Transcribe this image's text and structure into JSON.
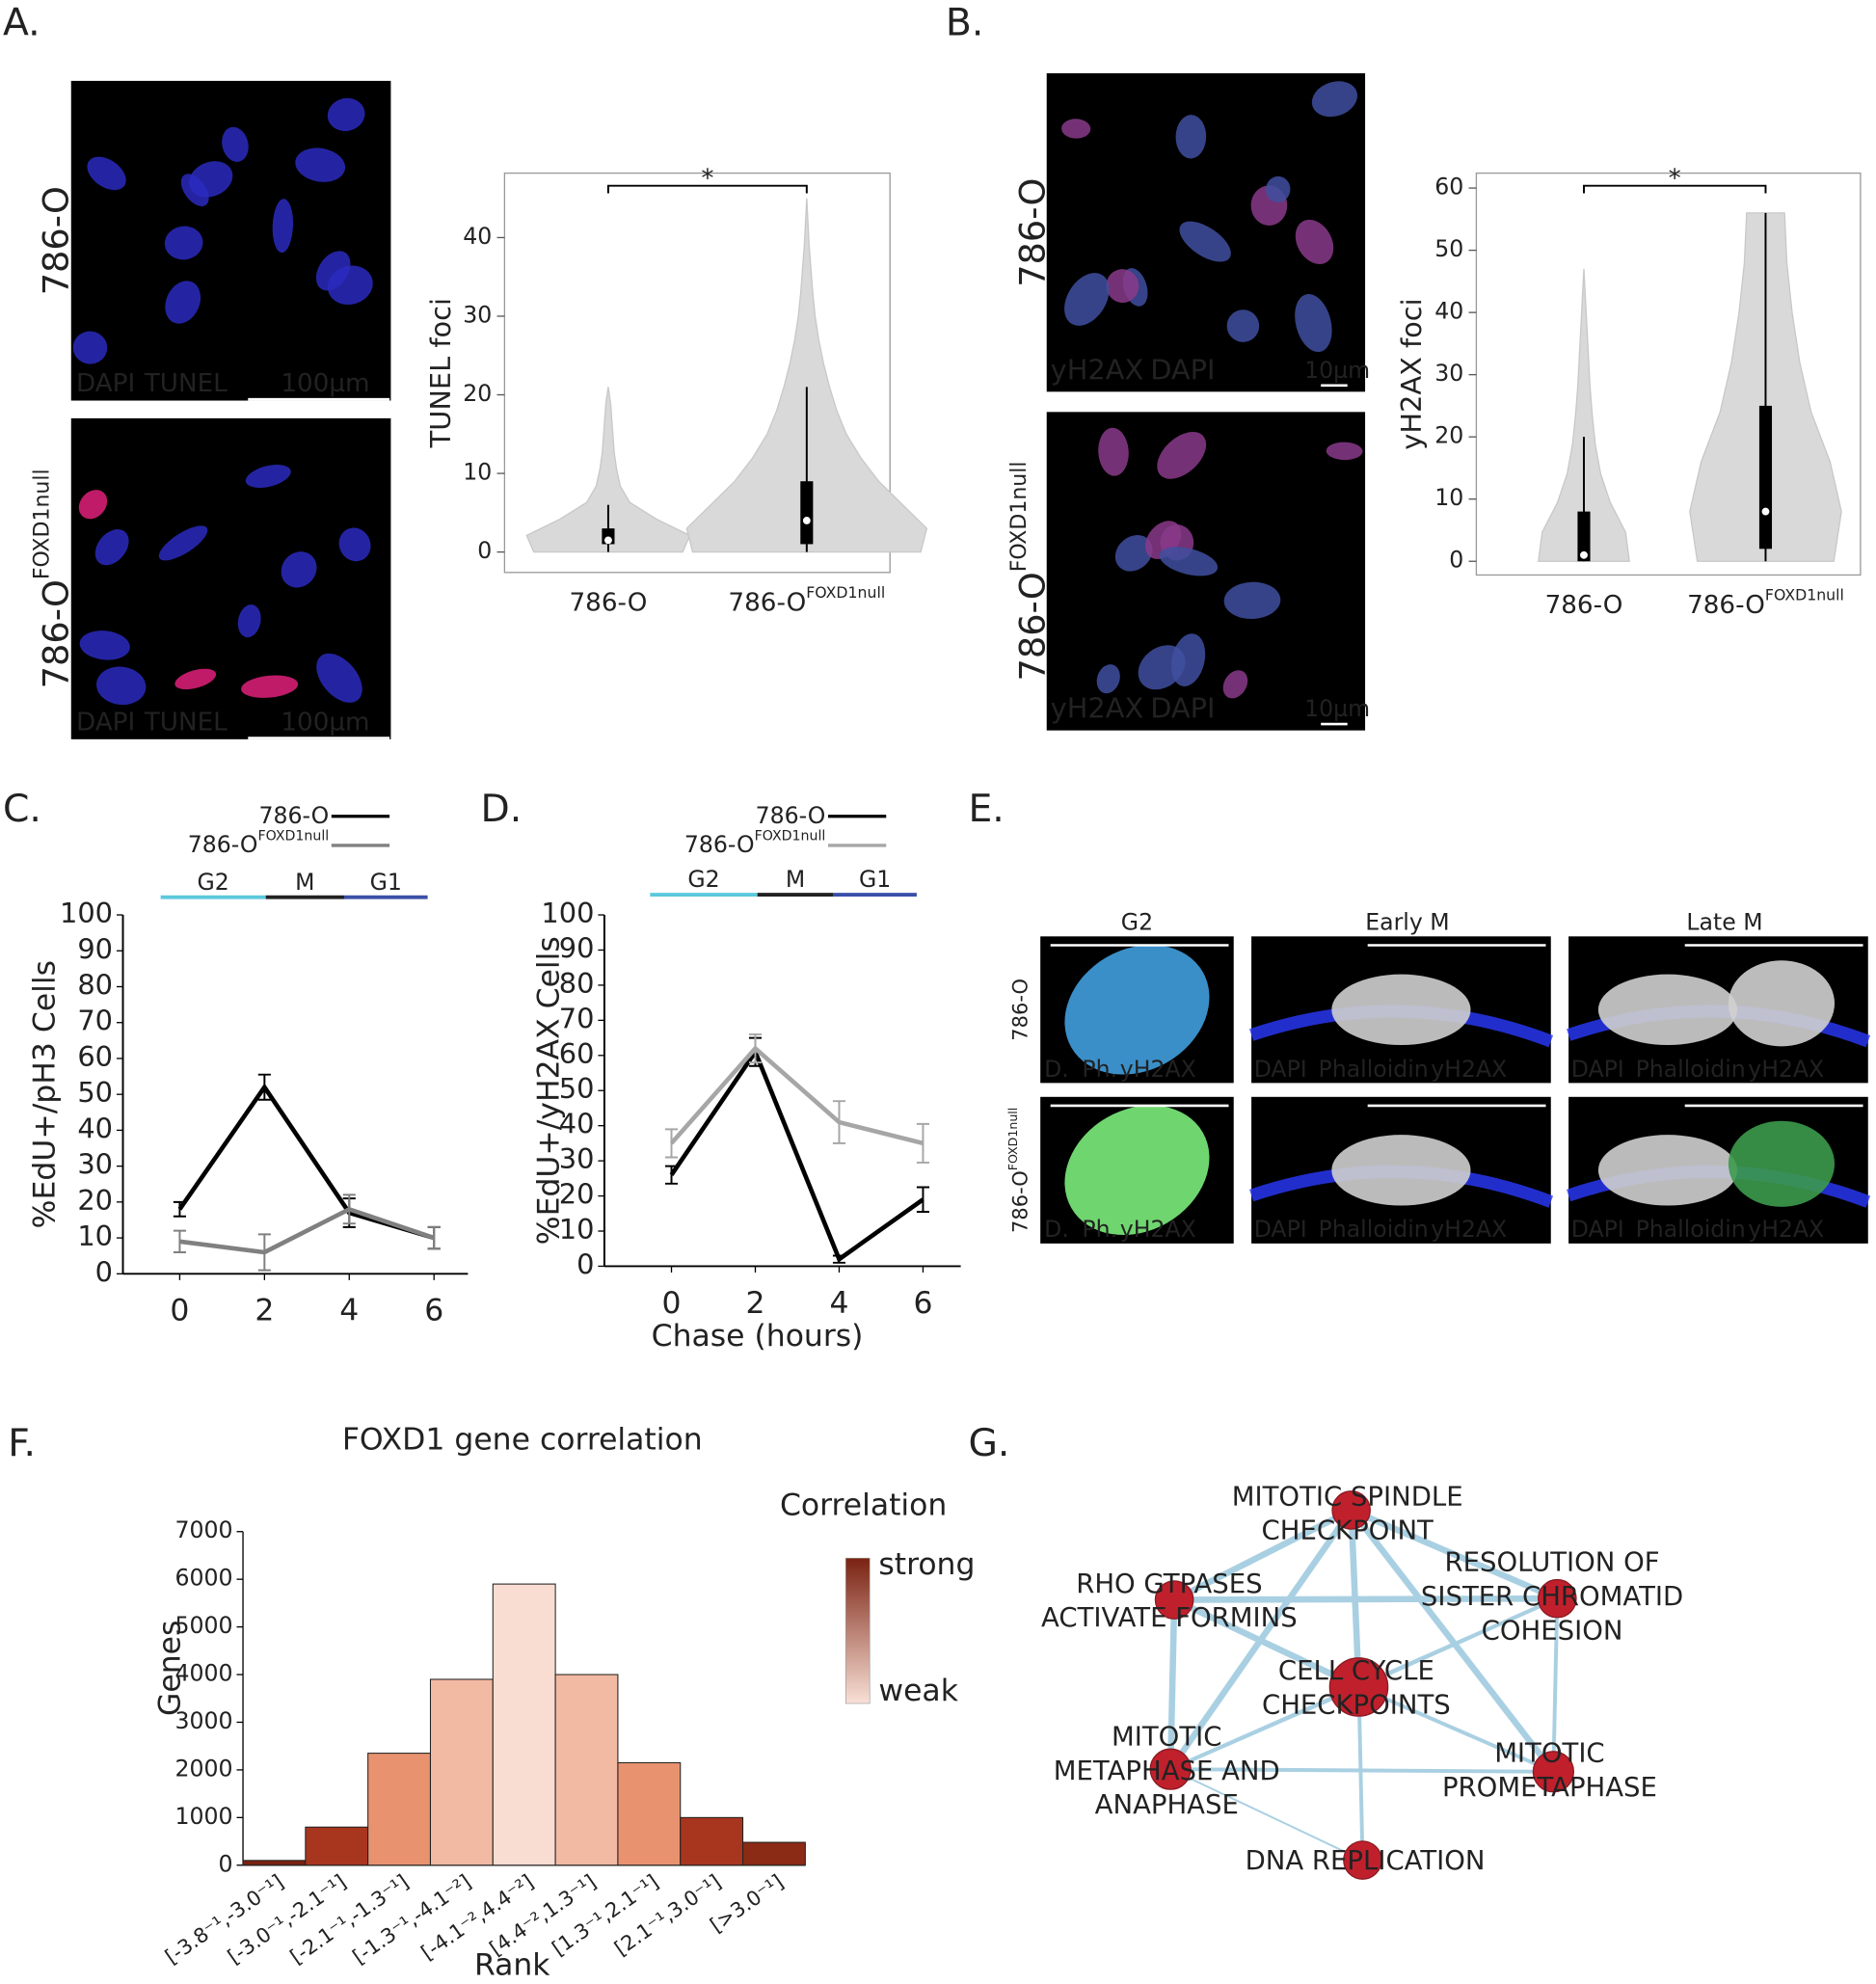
{
  "panel_labels": [
    "A.",
    "B.",
    "C.",
    "D.",
    "E.",
    "F.",
    "G."
  ],
  "microscopy": {
    "cell_line": "786-O",
    "knockout": "FOXD1null",
    "a_stains": [
      "DAPI",
      "TUNEL"
    ],
    "a_scale": "100µm",
    "b_stains": [
      "yH2AX",
      "DAPI"
    ],
    "b_scale": "10µm",
    "e_columns": [
      "G2",
      "Early M",
      "Late M"
    ],
    "e_short_stains": [
      "D.",
      "Ph.",
      "yH2AX"
    ],
    "e_stains": [
      "DAPI",
      "Phalloidin",
      "yH2AX"
    ]
  },
  "chart_data": [
    {
      "type": "violin",
      "ylabel": "TUNEL foci",
      "categories": [
        "786-O",
        "786-O"
      ],
      "category_superscripts": [
        null,
        "FOXD1null"
      ],
      "ylim": [
        -2.6,
        48.2
      ],
      "yticks": [
        0,
        10,
        20,
        30,
        40
      ],
      "color": "#d9d9d9",
      "annotation": "*",
      "violins": [
        {
          "min": 0,
          "max": 21,
          "q1": 1,
          "median": 1.5,
          "q3": 3,
          "whisker_low": 0,
          "whisker_high": 6,
          "density": [
            0.62,
            0.68,
            0.4,
            0.18,
            0.1,
            0.07,
            0.05,
            0.04,
            0.03,
            0.02,
            0
          ]
        },
        {
          "min": 0,
          "max": 45,
          "q1": 1,
          "median": 4,
          "q3": 9,
          "whisker_low": 0,
          "whisker_high": 21,
          "density": [
            0.95,
            1.0,
            0.8,
            0.6,
            0.45,
            0.33,
            0.25,
            0.19,
            0.14,
            0.1,
            0.07,
            0.05,
            0.035,
            0.02,
            0.01,
            0
          ]
        }
      ]
    },
    {
      "type": "violin",
      "ylabel": "yH2AX foci",
      "categories": [
        "786-O",
        "786-O"
      ],
      "category_superscripts": [
        null,
        "FOXD1null"
      ],
      "ylim": [
        -2.2,
        62.4
      ],
      "yticks": [
        0,
        10,
        20,
        30,
        40,
        50,
        60
      ],
      "color": "#d9d9d9",
      "annotation": "*",
      "violins": [
        {
          "min": 0,
          "max": 47,
          "q1": 0,
          "median": 1,
          "q3": 8,
          "whisker_low": 0,
          "whisker_high": 20,
          "density": [
            0.6,
            0.55,
            0.35,
            0.22,
            0.15,
            0.11,
            0.08,
            0.06,
            0.04,
            0.02,
            0
          ]
        },
        {
          "min": 0,
          "max": 56,
          "q1": 2,
          "median": 8,
          "q3": 25,
          "whisker_low": 0,
          "whisker_high": 56,
          "density": [
            0.9,
            1.0,
            0.85,
            0.6,
            0.45,
            0.35,
            0.28,
            0.25
          ]
        }
      ]
    },
    {
      "type": "line",
      "ylabel": "%EdU+/pH3 Cells",
      "x": [
        0,
        2,
        4,
        6
      ],
      "xlim": [
        -1.34,
        6.8
      ],
      "xticks": [
        0,
        2,
        4,
        6
      ],
      "ylim": [
        0,
        100
      ],
      "yticks": [
        0,
        10,
        20,
        30,
        40,
        50,
        60,
        70,
        80,
        90,
        100
      ],
      "phases": [
        "G2",
        "M",
        "G1"
      ],
      "phase_colors": [
        "#5bc8dd",
        "#222222",
        "#3a4fa8"
      ],
      "phase_bounds": [
        -0.45,
        2.03,
        3.88,
        5.85
      ],
      "series": [
        {
          "name": "786-O",
          "color": "#000000",
          "values": [
            18,
            52,
            17,
            10
          ],
          "errors": [
            2,
            3.5,
            4,
            3
          ]
        },
        {
          "name": "786-O",
          "name_superscript": "FOXD1null",
          "color": "#808080",
          "values": [
            9,
            6,
            18,
            10
          ],
          "errors": [
            3,
            5,
            4,
            3
          ]
        }
      ]
    },
    {
      "type": "line",
      "ylabel": "%EdU+/yH2AX Cells",
      "xlabel": "Chase (hours)",
      "x": [
        0,
        2,
        4,
        6
      ],
      "xlim": [
        -1.6,
        6.9
      ],
      "xticks": [
        0,
        2,
        4,
        6
      ],
      "ylim": [
        0,
        100
      ],
      "yticks": [
        0,
        10,
        20,
        30,
        40,
        50,
        60,
        70,
        80,
        90,
        100
      ],
      "phases": [
        "G2",
        "M",
        "G1"
      ],
      "phase_colors": [
        "#5bc8dd",
        "#222222",
        "#3a4fa8"
      ],
      "phase_bounds": [
        -0.51,
        2.05,
        3.86,
        5.85
      ],
      "series": [
        {
          "name": "786-O",
          "color": "#000000",
          "values": [
            26,
            61,
            2,
            19
          ],
          "errors": [
            2.5,
            4,
            1,
            3.5
          ]
        },
        {
          "name": "786-O",
          "name_superscript": "FOXD1null",
          "color": "#a6a6a6",
          "values": [
            35,
            62,
            41,
            35
          ],
          "errors": [
            4,
            4,
            6,
            5.5
          ]
        }
      ]
    },
    {
      "type": "bar",
      "title": "FOXD1 gene correlation",
      "xlabel": "Rank",
      "ylabel": "Genes",
      "categories": [
        "[-3.8⁻¹,-3.0⁻¹]",
        "[-3.0⁻¹,-2.1⁻¹]",
        "[-2.1⁻¹,-1.3⁻¹]",
        "[-1.3⁻¹,-4.1⁻²]",
        "[-4.1⁻²,4.4⁻²]",
        "[4.4⁻²,1.3⁻¹]",
        "[1.3⁻¹,2.1⁻¹]",
        "[2.1⁻¹,3.0⁻¹]",
        "[>3.0⁻¹]"
      ],
      "values": [
        100,
        800,
        2350,
        3900,
        5900,
        4000,
        2150,
        1000,
        480
      ],
      "colors": [
        "#7a2211",
        "#a8361f",
        "#e8926f",
        "#f2b9a3",
        "#f9ddd2",
        "#f2b9a3",
        "#e8926f",
        "#a8361f",
        "#8b2a15"
      ],
      "ylim": [
        0,
        7000
      ],
      "yticks": [
        0,
        1000,
        2000,
        3000,
        4000,
        5000,
        6000,
        7000
      ],
      "legend_title": "Correlation",
      "legend_labels": [
        "strong",
        "weak"
      ],
      "legend_colors": [
        "#7a2211",
        "#f9e0d6"
      ]
    }
  ],
  "network": {
    "node_color": "#c0202c",
    "edge_color": "#a9d0e2",
    "nodes": [
      {
        "label_lines": [
          "MITOTIC SPINDLE",
          "CHECKPOINT"
        ]
      },
      {
        "label_lines": [
          "RESOLUTION OF",
          "SISTER CHROMATID",
          "COHESION"
        ]
      },
      {
        "label_lines": [
          "RHO GTPASES",
          "ACTIVATE FORMINS"
        ]
      },
      {
        "label_lines": [
          "CELL CYCLE",
          "CHECKPOINTS"
        ]
      },
      {
        "label_lines": [
          "MITOTIC",
          "METAPHASE AND",
          "ANAPHASE"
        ]
      },
      {
        "label_lines": [
          "MITOTIC",
          "PROMETAPHASE"
        ]
      },
      {
        "label_lines": [
          "DNA REPLICATION"
        ]
      }
    ],
    "edges": [
      [
        0,
        2
      ],
      [
        0,
        1
      ],
      [
        0,
        3
      ],
      [
        0,
        4
      ],
      [
        0,
        5
      ],
      [
        2,
        1
      ],
      [
        2,
        3
      ],
      [
        2,
        4
      ],
      [
        1,
        3
      ],
      [
        1,
        5
      ],
      [
        1,
        4
      ],
      [
        3,
        4
      ],
      [
        3,
        5
      ],
      [
        3,
        6
      ],
      [
        4,
        5
      ],
      [
        4,
        6
      ]
    ]
  }
}
